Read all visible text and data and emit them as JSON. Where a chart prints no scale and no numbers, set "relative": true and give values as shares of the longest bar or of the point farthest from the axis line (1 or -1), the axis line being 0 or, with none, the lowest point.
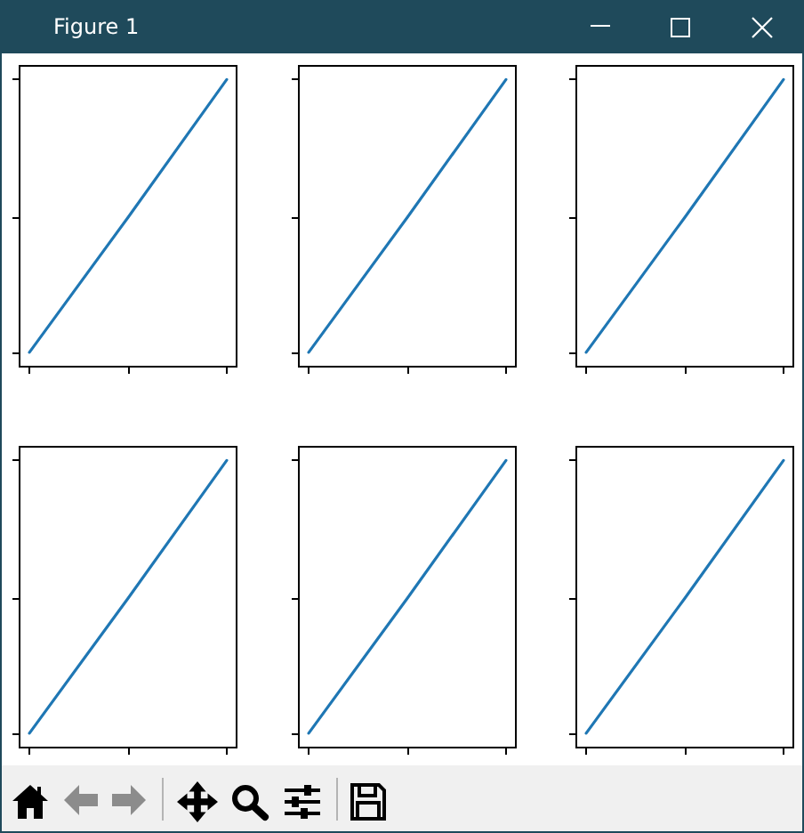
{
  "chart_data": [
    {
      "type": "other",
      "title": "Figure 1"
    },
    {
      "type": "line",
      "categories": [
        null,
        null,
        null
      ],
      "values": [
        0.05,
        0.52,
        1
      ],
      "color": "#1f77b4",
      "relative": true
    },
    {
      "type": "line",
      "categories": [
        null,
        null,
        null
      ],
      "values": [
        0.05,
        0.52,
        1
      ],
      "color": "#1f77b4",
      "relative": true
    },
    {
      "type": "line",
      "categories": [
        null,
        null,
        null
      ],
      "values": [
        0.05,
        0.52,
        1
      ],
      "color": "#1f77b4",
      "relative": true
    },
    {
      "type": "line",
      "categories": [
        null,
        null,
        null
      ],
      "values": [
        0.05,
        0.52,
        1
      ],
      "color": "#1f77b4",
      "relative": true
    },
    {
      "type": "line",
      "categories": [
        null,
        null,
        null
      ],
      "values": [
        0.05,
        0.52,
        1
      ],
      "color": "#1f77b4",
      "relative": true
    },
    {
      "type": "line",
      "categories": [
        null,
        null,
        null
      ],
      "values": [
        0.05,
        0.52,
        1
      ],
      "color": "#1f77b4",
      "relative": true
    }
  ]
}
